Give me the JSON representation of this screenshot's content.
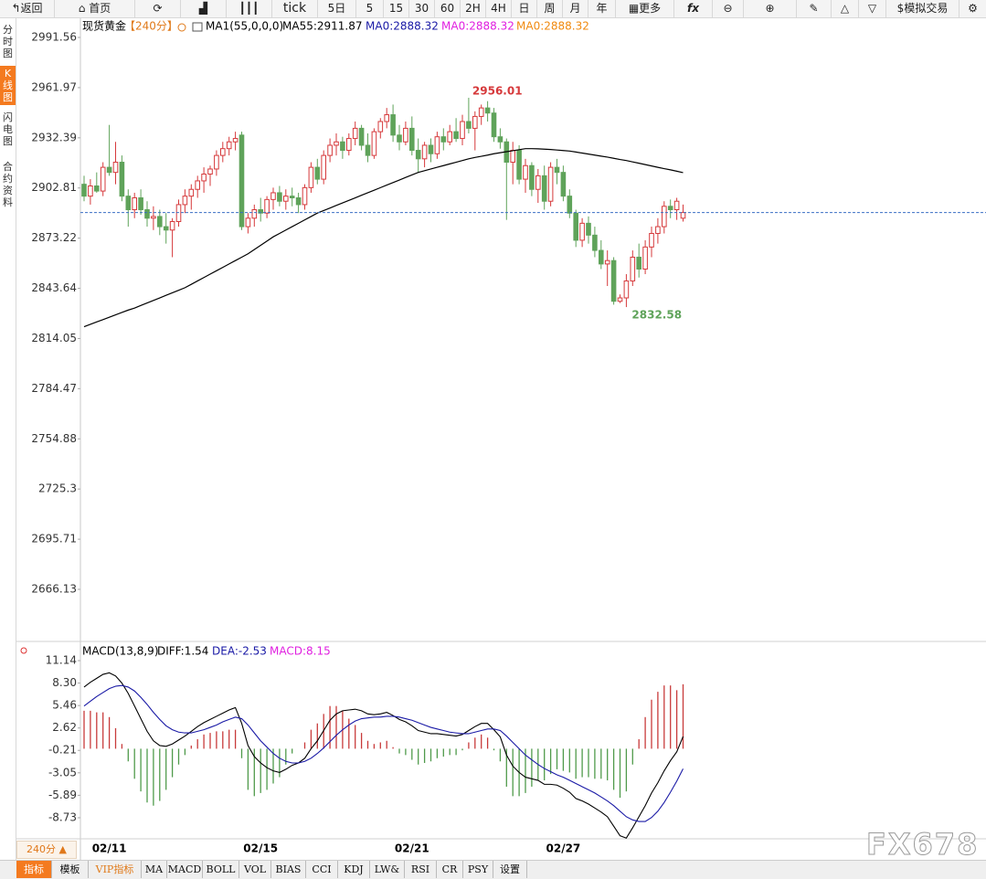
{
  "toolbar": {
    "items": [
      "返回",
      "首页",
      "tick",
      "5日",
      "5",
      "15",
      "30",
      "60",
      "2H",
      "4H",
      "日",
      "周",
      "月",
      "年",
      "更多",
      "fx",
      "模拟交易"
    ]
  },
  "sidebar": [
    "分时图",
    "K线图",
    "闪电图",
    "合约资料"
  ],
  "chart_data": [
    {
      "type": "candlestick",
      "title": "现货黄金",
      "period": "【240分】",
      "indicator": "MA1(55,0,0,0)",
      "categories": [
        null,
        null,
        null,
        null,
        "02/11",
        null,
        null,
        null,
        null,
        null,
        null,
        null,
        null,
        null,
        null,
        null,
        null,
        null,
        null,
        null,
        null,
        null,
        null,
        null,
        null,
        null,
        null,
        null,
        "02/15",
        null,
        null,
        null,
        null,
        null,
        null,
        null,
        null,
        null,
        null,
        null,
        null,
        null,
        null,
        null,
        null,
        null,
        null,
        null,
        null,
        null,
        null,
        null,
        "02/21",
        null,
        null,
        null,
        null,
        null,
        null,
        null,
        null,
        null,
        null,
        null,
        null,
        null,
        null,
        null,
        null,
        null,
        null,
        null,
        null,
        null,
        null,
        null,
        "02/27",
        null,
        null,
        null,
        null,
        null,
        null,
        null,
        null,
        null,
        null,
        null,
        null,
        null,
        null,
        null,
        null,
        null,
        null,
        null
      ],
      "open": [
        2905,
        2898,
        2904,
        2901,
        2915,
        2912,
        2918,
        2898,
        2890,
        2897,
        2890,
        2885,
        2886,
        2880,
        2878,
        2883,
        2893,
        2898,
        2902,
        2907,
        2911,
        2914,
        2922,
        2926,
        2930,
        2934,
        2880,
        2885,
        2890,
        2888,
        2896,
        2900,
        2895,
        2898,
        2897,
        2893,
        2903,
        2915,
        2908,
        2922,
        2928,
        2930,
        2925,
        2932,
        2938,
        2928,
        2922,
        2936,
        2942,
        2946,
        2934,
        2930,
        2938,
        2925,
        2920,
        2928,
        2923,
        2933,
        2930,
        2936,
        2932,
        2942,
        2938,
        2945,
        2950,
        2947,
        2933,
        2930,
        2918,
        2925,
        2908,
        2916,
        2902,
        2910,
        2895,
        2915,
        2912,
        2898,
        2888,
        2872,
        2882,
        2875,
        2866,
        2858,
        2860,
        2836,
        2838,
        2848,
        2862,
        2855,
        2868,
        2876,
        2880,
        2892,
        2890,
        2885
      ],
      "high": [
        2910,
        2908,
        2912,
        2918,
        2940,
        2930,
        2922,
        2902,
        2900,
        2902,
        2895,
        2892,
        2890,
        2888,
        2885,
        2896,
        2902,
        2905,
        2910,
        2915,
        2916,
        2925,
        2930,
        2933,
        2936,
        2936,
        2888,
        2893,
        2897,
        2898,
        2903,
        2904,
        2902,
        2903,
        2900,
        2905,
        2918,
        2920,
        2925,
        2932,
        2935,
        2933,
        2935,
        2942,
        2940,
        2935,
        2938,
        2944,
        2950,
        2952,
        2940,
        2942,
        2945,
        2932,
        2930,
        2932,
        2936,
        2938,
        2940,
        2944,
        2946,
        2956.01,
        2948,
        2952,
        2954,
        2950,
        2938,
        2932,
        2930,
        2928,
        2920,
        2918,
        2914,
        2916,
        2918,
        2920,
        2916,
        2902,
        2890,
        2885,
        2886,
        2880,
        2872,
        2866,
        2862,
        2840,
        2852,
        2866,
        2870,
        2872,
        2880,
        2885,
        2895,
        2896,
        2897,
        2893
      ],
      "low": [
        2895,
        2893,
        2900,
        2898,
        2910,
        2905,
        2895,
        2880,
        2885,
        2887,
        2880,
        2878,
        2875,
        2870,
        2862,
        2880,
        2888,
        2890,
        2897,
        2900,
        2904,
        2910,
        2918,
        2922,
        2925,
        2878,
        2876,
        2880,
        2883,
        2885,
        2890,
        2892,
        2890,
        2892,
        2888,
        2890,
        2900,
        2905,
        2905,
        2918,
        2922,
        2920,
        2922,
        2928,
        2925,
        2918,
        2920,
        2932,
        2938,
        2930,
        2925,
        2928,
        2922,
        2912,
        2915,
        2918,
        2920,
        2925,
        2928,
        2930,
        2928,
        2935,
        2925,
        2940,
        2942,
        2930,
        2926,
        2884,
        2905,
        2905,
        2900,
        2898,
        2894,
        2890,
        2892,
        2905,
        2895,
        2885,
        2868,
        2868,
        2870,
        2862,
        2855,
        2845,
        2834,
        2835,
        2832.58,
        2845,
        2850,
        2852,
        2862,
        2870,
        2876,
        2885,
        2884,
        2883
      ],
      "close": [
        2898,
        2904,
        2901,
        2915,
        2912,
        2918,
        2898,
        2890,
        2897,
        2890,
        2885,
        2886,
        2880,
        2878,
        2883,
        2893,
        2898,
        2902,
        2907,
        2911,
        2914,
        2922,
        2926,
        2930,
        2932,
        2880,
        2885,
        2890,
        2888,
        2896,
        2900,
        2895,
        2898,
        2897,
        2893,
        2903,
        2915,
        2908,
        2922,
        2928,
        2930,
        2925,
        2932,
        2938,
        2928,
        2922,
        2936,
        2942,
        2946,
        2934,
        2930,
        2938,
        2925,
        2920,
        2928,
        2923,
        2933,
        2930,
        2936,
        2932,
        2942,
        2938,
        2945,
        2950,
        2947,
        2933,
        2930,
        2918,
        2925,
        2908,
        2916,
        2902,
        2910,
        2895,
        2915,
        2912,
        2898,
        2888,
        2872,
        2882,
        2875,
        2866,
        2858,
        2860,
        2836,
        2838,
        2848,
        2862,
        2855,
        2868,
        2876,
        2880,
        2892,
        2890,
        2895,
        2888.32
      ],
      "up_color": "#d6393b",
      "down_color": "#5fa35a",
      "ma": {
        "name": "MA55:2911.87",
        "color": "#000000",
        "values": [
          2821,
          2822.4,
          2823.8,
          2825.2,
          2826.6,
          2828,
          2829.4,
          2830.8,
          2832,
          2833.5,
          2835,
          2836.5,
          2838,
          2839.5,
          2841,
          2842.5,
          2844,
          2846,
          2848,
          2850,
          2852,
          2854,
          2856,
          2858,
          2860,
          2862,
          2864,
          2866.5,
          2869,
          2871.5,
          2874,
          2876,
          2878,
          2880,
          2882,
          2884,
          2886,
          2888,
          2889.5,
          2891,
          2892.5,
          2894,
          2895.5,
          2897,
          2898.5,
          2900,
          2901.5,
          2903,
          2904.5,
          2906,
          2907.5,
          2909,
          2910.5,
          2912,
          2913,
          2914,
          2915,
          2916,
          2917,
          2918,
          2919,
          2920,
          2920.8,
          2921.5,
          2922.2,
          2923,
          2923.6,
          2924.2,
          2924.8,
          2925.4,
          2926,
          2926,
          2925.9,
          2925.7,
          2925.5,
          2925.2,
          2924.9,
          2924.6,
          2924,
          2923.4,
          2922.8,
          2922.2,
          2921.6,
          2921,
          2920.3,
          2919.6,
          2919,
          2918.2,
          2917.4,
          2916.6,
          2915.8,
          2915,
          2914.2,
          2913.5,
          2912.7,
          2911.87
        ]
      },
      "extra_legend": [
        {
          "text": "MA0:2888.32",
          "color": "#1a1aa6"
        },
        {
          "text": "MA0:2888.32",
          "color": "#e020e0"
        },
        {
          "text": "MA0:2888.32",
          "color": "#f08a10"
        }
      ],
      "ylim": [
        2636.5,
        3001.8
      ],
      "yticks": [
        2991.56,
        2961.97,
        2932.39,
        2902.81,
        2873.22,
        2843.64,
        2814.05,
        2784.47,
        2754.88,
        2725.3,
        2695.71,
        2666.13
      ]
    },
    {
      "type": "macd",
      "title": "MACD(13,8,9)",
      "series": [
        {
          "name": "DIFF:1.54",
          "color": "#000000",
          "values": [
            7.8,
            8.4,
            8.9,
            9.4,
            9.6,
            9.2,
            8.3,
            7.0,
            5.4,
            3.8,
            2.2,
            1.0,
            0.4,
            0.3,
            0.6,
            1.1,
            1.6,
            2.2,
            2.8,
            3.3,
            3.7,
            4.1,
            4.5,
            4.9,
            5.2,
            3.2,
            0.4,
            -1.0,
            -1.8,
            -2.4,
            -2.8,
            -3.0,
            -2.6,
            -2.1,
            -1.8,
            -1.2,
            0.0,
            1.0,
            2.3,
            3.6,
            4.4,
            4.8,
            4.9,
            5.0,
            4.8,
            4.4,
            4.3,
            4.4,
            4.6,
            4.2,
            3.7,
            3.4,
            2.9,
            2.3,
            2.1,
            1.9,
            1.9,
            1.8,
            1.7,
            1.6,
            1.8,
            2.3,
            2.8,
            3.2,
            3.2,
            2.4,
            1.5,
            -0.8,
            -2.2,
            -3.0,
            -3.6,
            -3.8,
            -4.0,
            -4.5,
            -4.5,
            -4.6,
            -5.0,
            -5.5,
            -6.3,
            -6.6,
            -7.0,
            -7.5,
            -8.0,
            -8.6,
            -9.8,
            -11.0,
            -11.3,
            -10.0,
            -8.6,
            -7.2,
            -5.6,
            -4.3,
            -2.8,
            -1.5,
            -0.4,
            1.54
          ]
        },
        {
          "name": "DEA:-2.53",
          "color": "#1a1aa6",
          "values": [
            5.4,
            6.0,
            6.6,
            7.1,
            7.6,
            7.9,
            8.0,
            7.8,
            7.3,
            6.5,
            5.6,
            4.6,
            3.7,
            2.9,
            2.4,
            2.1,
            2.0,
            2.0,
            2.2,
            2.4,
            2.7,
            3.0,
            3.4,
            3.7,
            4.0,
            3.8,
            3.0,
            2.0,
            1.0,
            0.2,
            -0.6,
            -1.2,
            -1.6,
            -1.8,
            -1.8,
            -1.6,
            -1.2,
            -0.6,
            0.1,
            0.9,
            1.7,
            2.4,
            3.0,
            3.5,
            3.8,
            3.9,
            4.0,
            4.0,
            4.1,
            4.1,
            4.0,
            3.8,
            3.6,
            3.3,
            3.0,
            2.7,
            2.5,
            2.3,
            2.1,
            2.0,
            1.9,
            1.9,
            2.1,
            2.3,
            2.5,
            2.5,
            2.3,
            1.6,
            0.8,
            0.0,
            -0.8,
            -1.4,
            -2.0,
            -2.5,
            -2.9,
            -3.3,
            -3.6,
            -4.0,
            -4.4,
            -4.8,
            -5.2,
            -5.6,
            -6.1,
            -6.6,
            -7.2,
            -7.9,
            -8.6,
            -9.0,
            -9.2,
            -9.2,
            -8.7,
            -7.9,
            -6.8,
            -5.5,
            -4.1,
            -2.53
          ]
        },
        {
          "name": "MACD:8.15",
          "color": "#e020e0",
          "values": [
            4.8,
            4.8,
            4.6,
            4.6,
            4.0,
            2.6,
            0.6,
            -1.6,
            -3.8,
            -5.4,
            -6.8,
            -7.2,
            -6.6,
            -5.2,
            -3.6,
            -2.0,
            -0.8,
            0.4,
            1.2,
            1.8,
            2.0,
            2.2,
            2.2,
            2.4,
            2.4,
            -1.2,
            -5.2,
            -6.0,
            -5.6,
            -5.2,
            -4.4,
            -3.6,
            -2.0,
            -0.6,
            0.0,
            0.8,
            2.4,
            3.2,
            4.4,
            5.4,
            5.4,
            4.8,
            3.8,
            3.0,
            2.0,
            1.0,
            0.6,
            0.8,
            1.0,
            0.2,
            -0.6,
            -0.8,
            -1.4,
            -2.0,
            -1.8,
            -1.6,
            -1.2,
            -1.0,
            -0.8,
            -0.8,
            -0.2,
            0.8,
            1.4,
            1.8,
            1.4,
            -0.2,
            -1.6,
            -4.8,
            -6.0,
            -6.0,
            -5.6,
            -4.8,
            -4.0,
            -4.0,
            -3.2,
            -2.6,
            -2.8,
            -3.0,
            -3.8,
            -3.6,
            -3.6,
            -3.8,
            -3.8,
            -4.0,
            -5.2,
            -6.2,
            -5.4,
            -2.0,
            1.2,
            4.0,
            6.2,
            7.2,
            8.0,
            8.0,
            7.4,
            8.15
          ]
        }
      ],
      "up_color": "#c83a3a",
      "down_color": "#4f9a4a",
      "ylim": [
        -11.39,
        13.22
      ],
      "yticks": [
        11.14,
        {
          "value": 8.3,
          "label": "8.30"
        },
        5.46,
        2.62,
        -0.21,
        -3.05,
        -5.89,
        -8.73
      ]
    }
  ],
  "period_selector": "240分 ▲",
  "indicator_tabs": [
    "指标",
    "模板",
    "VIP指标",
    "MA",
    "MACD",
    "BOLL",
    "VOL",
    "BIAS",
    "CCI",
    "KDJ",
    "LW&",
    "RSI",
    "CR",
    "PSY",
    "设置"
  ],
  "watermark": "FX678"
}
